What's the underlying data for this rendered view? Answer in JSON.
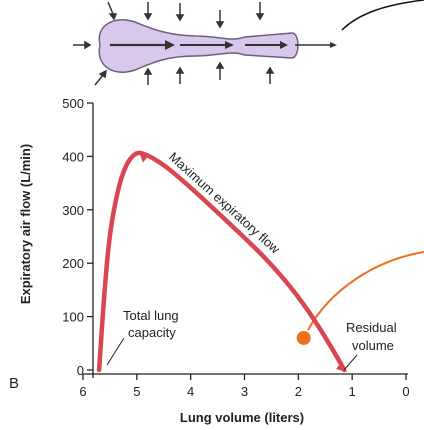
{
  "chart_data": {
    "type": "line",
    "panel_label": "B",
    "xlabel": "Lung volume (liters)",
    "ylabel": "Expiratory air flow (L/min)",
    "xlim": [
      6,
      0
    ],
    "ylim": [
      0,
      500
    ],
    "x_ticks": [
      "6",
      "5",
      "4",
      "3",
      "2",
      "1",
      "0"
    ],
    "y_ticks": [
      "0",
      "100",
      "200",
      "300",
      "400",
      "500"
    ],
    "grid": false,
    "series": [
      {
        "color": "#d9464f",
        "x": [
          5.7,
          5.6,
          5.5,
          5.35,
          5.2,
          5.05,
          4.9,
          4.5,
          4.0,
          3.5,
          3.0,
          2.5,
          2.0,
          1.6,
          1.3,
          1.15
        ],
        "y": [
          0,
          150,
          260,
          340,
          385,
          405,
          408,
          385,
          342,
          295,
          248,
          198,
          138,
          78,
          28,
          0
        ]
      }
    ],
    "annotations": {
      "max_flow": "Maximum expiratory flow",
      "tlc_line1": "Total lung",
      "tlc_line2": "capacity",
      "rv_line1": "Residual",
      "rv_line2": "volume"
    },
    "highlight_marker_color": "#f07020",
    "highlight_x": 1.9,
    "highlight_y": 60
  },
  "colors": {
    "curve": "#d9464f",
    "marker": "#f07020",
    "airway_fill": "#d9c8ec",
    "airway_stroke": "#6a6080"
  }
}
